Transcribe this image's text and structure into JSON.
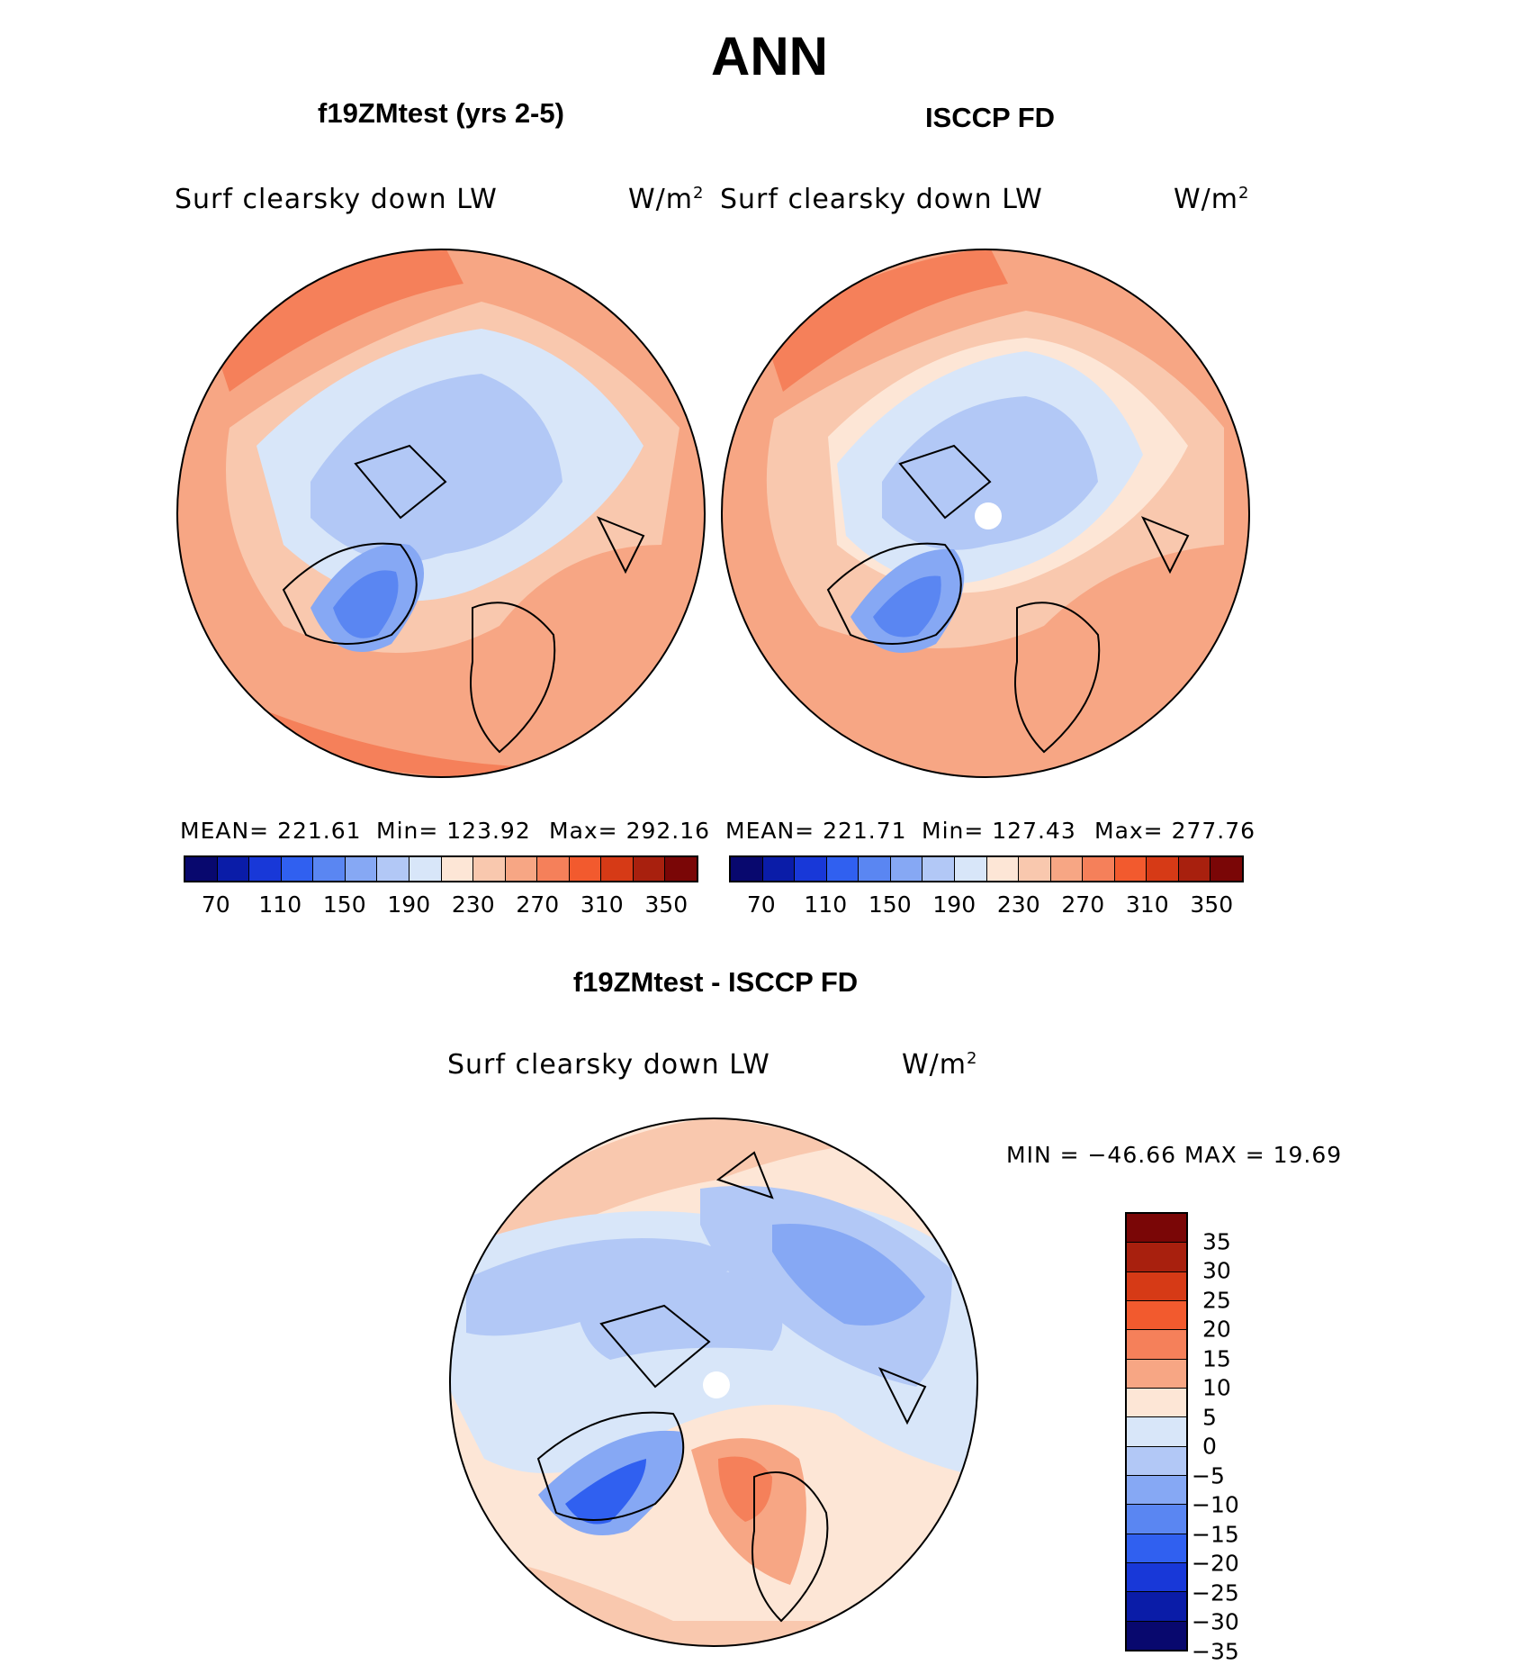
{
  "chart_data": {
    "type": "heatmap",
    "title": "ANN",
    "panels": [
      {
        "title": "f19ZMtest (yrs 2-5)",
        "left_label": "Surf clearsky down LW",
        "units": "W/m",
        "units_sup": "2",
        "stats": {
          "mean": "MEAN= 221.61",
          "min": "Min= 123.92",
          "max": "Max= 292.16"
        },
        "colorbar_ticks": [
          "70",
          "110",
          "150",
          "190",
          "230",
          "270",
          "310",
          "350"
        ]
      },
      {
        "title": "ISCCP FD",
        "left_label": "Surf clearsky down LW",
        "units": "W/m",
        "units_sup": "2",
        "stats": {
          "mean": "MEAN= 221.71",
          "min": "Min= 127.43",
          "max": "Max= 277.76"
        },
        "colorbar_ticks": [
          "70",
          "110",
          "150",
          "190",
          "230",
          "270",
          "310",
          "350"
        ]
      },
      {
        "title": "f19ZMtest - ISCCP FD",
        "left_label": "Surf clearsky down LW",
        "units": "W/m",
        "units_sup": "2",
        "stats": {
          "minmax": "MIN = −46.66 MAX =   19.69"
        },
        "colorbar_ticks": [
          "35",
          "30",
          "25",
          "20",
          "15",
          "10",
          "5",
          "0",
          "−5",
          "−10",
          "−15",
          "−20",
          "−25",
          "−30",
          "−35"
        ]
      }
    ],
    "abs_colors": [
      "#08086e",
      "#0a1ca8",
      "#1838d8",
      "#3060f0",
      "#5a86f2",
      "#86a8f4",
      "#b2c8f6",
      "#d8e6f9",
      "#fde6d6",
      "#f9c8ae",
      "#f7a684",
      "#f5805a",
      "#f25a2e",
      "#d63a16",
      "#a8200e",
      "#7a0606"
    ],
    "diff_colors": [
      "#7a0606",
      "#a8200e",
      "#d63a16",
      "#f25a2e",
      "#f5805a",
      "#f7a684",
      "#fde6d6",
      "#d8e6f9",
      "#b2c8f6",
      "#86a8f4",
      "#5a86f2",
      "#3060f0",
      "#1838d8",
      "#0a1ca8",
      "#08086e"
    ]
  }
}
